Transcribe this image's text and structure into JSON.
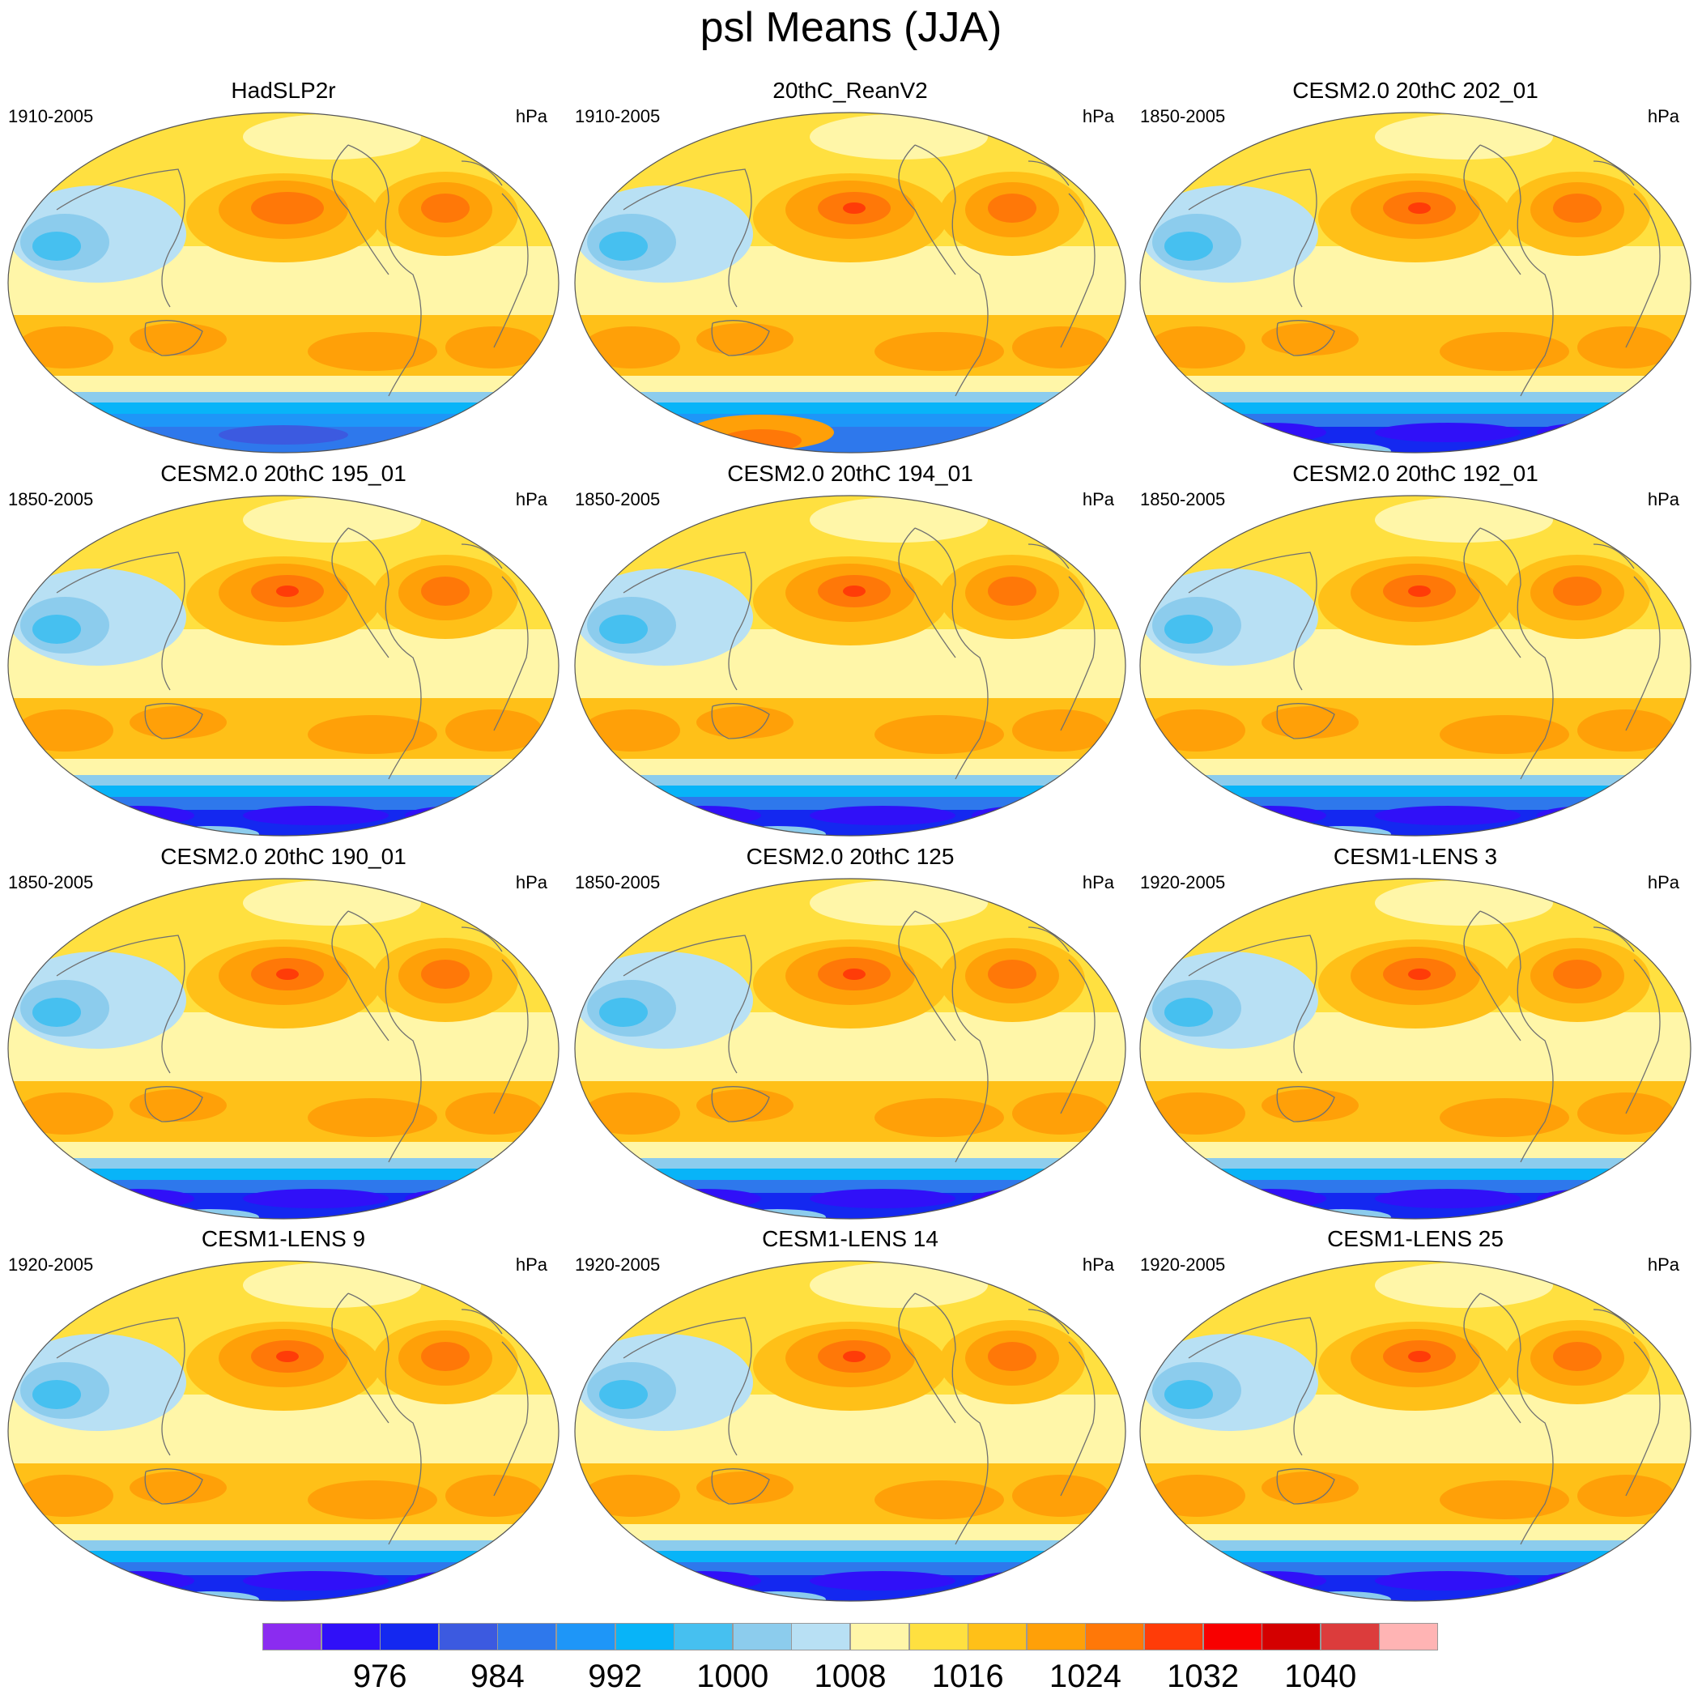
{
  "title": "psl Means (JJA)",
  "panels": [
    {
      "title": "HadSLP2r",
      "years": "1910-2005",
      "units": "hPa",
      "variant": "obs"
    },
    {
      "title": "20thC_ReanV2",
      "years": "1910-2005",
      "units": "hPa",
      "variant": "rean"
    },
    {
      "title": "CESM2.0 20thC 202_01",
      "years": "1850-2005",
      "units": "hPa",
      "variant": "cesm2"
    },
    {
      "title": "CESM2.0 20thC 195_01",
      "years": "1850-2005",
      "units": "hPa",
      "variant": "cesm2"
    },
    {
      "title": "CESM2.0 20thC 194_01",
      "years": "1850-2005",
      "units": "hPa",
      "variant": "cesm2"
    },
    {
      "title": "CESM2.0 20thC 192_01",
      "years": "1850-2005",
      "units": "hPa",
      "variant": "cesm2"
    },
    {
      "title": "CESM2.0 20thC 190_01",
      "years": "1850-2005",
      "units": "hPa",
      "variant": "cesm2"
    },
    {
      "title": "CESM2.0 20thC 125",
      "years": "1850-2005",
      "units": "hPa",
      "variant": "cesm2"
    },
    {
      "title": "CESM1-LENS 3",
      "years": "1920-2005",
      "units": "hPa",
      "variant": "lens"
    },
    {
      "title": "CESM1-LENS 9",
      "years": "1920-2005",
      "units": "hPa",
      "variant": "lens"
    },
    {
      "title": "CESM1-LENS 14",
      "years": "1920-2005",
      "units": "hPa",
      "variant": "lens"
    },
    {
      "title": "CESM1-LENS 25",
      "years": "1920-2005",
      "units": "hPa",
      "variant": "lens"
    }
  ],
  "colorbar": {
    "colors": [
      "#8b2cf0",
      "#3010f8",
      "#1428f0",
      "#3c5ae0",
      "#2e78ec",
      "#1e96f8",
      "#08b4f8",
      "#46c0f0",
      "#8ccced",
      "#b8e0f4",
      "#fff6a8",
      "#ffe040",
      "#ffc018",
      "#ffa008",
      "#ff7808",
      "#ff3c08",
      "#f80000",
      "#d40000",
      "#dc3c3c",
      "#ffb4b4"
    ],
    "labels": [
      "976",
      "984",
      "992",
      "1000",
      "1008",
      "1016",
      "1024",
      "1032",
      "1040"
    ]
  }
}
